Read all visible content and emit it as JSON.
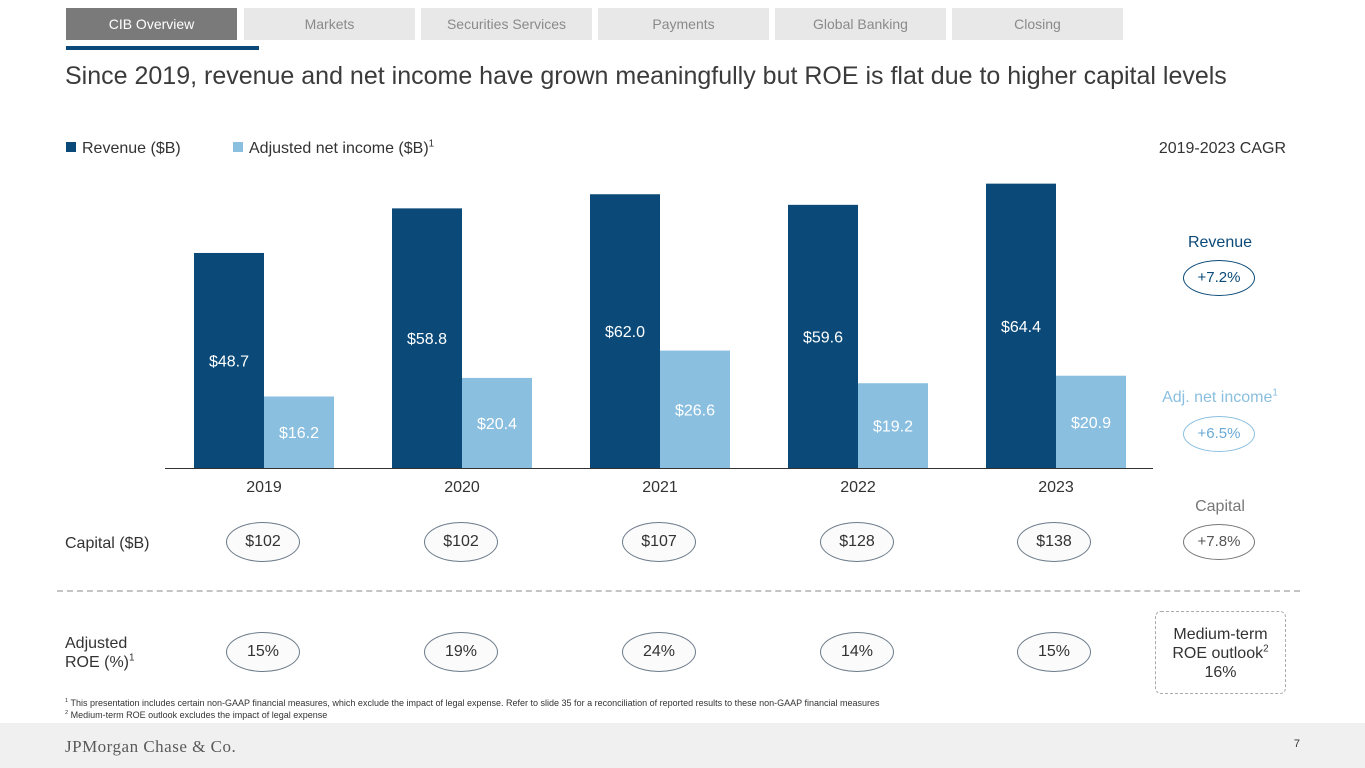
{
  "tabs": [
    {
      "label": "CIB Overview",
      "active": true
    },
    {
      "label": "Markets",
      "active": false
    },
    {
      "label": "Securities Services",
      "active": false
    },
    {
      "label": "Payments",
      "active": false
    },
    {
      "label": "Global Banking",
      "active": false
    },
    {
      "label": "Closing",
      "active": false
    }
  ],
  "title": "Since 2019, revenue and net income have grown meaningfully but ROE is flat due to higher capital levels",
  "legend": {
    "revenue": "Revenue ($B)",
    "net_income": "Adjusted net income ($B)",
    "net_income_sup": "1"
  },
  "cagr": {
    "title": "2019-2023 CAGR",
    "revenue_label": "Revenue",
    "revenue_value": "+7.2%",
    "net_income_label": "Adj. net income",
    "net_income_sup": "1",
    "net_income_value": "+6.5%",
    "capital_label": "Capital",
    "capital_value": "+7.8%"
  },
  "capital": {
    "label": "Capital ($B)",
    "values": [
      "$102",
      "$102",
      "$107",
      "$128",
      "$138"
    ]
  },
  "roe": {
    "label_line1": "Adjusted",
    "label_line2": "ROE (%)",
    "label_sup": "1",
    "values": [
      "15%",
      "19%",
      "24%",
      "14%",
      "15%"
    ]
  },
  "outlook": {
    "line1": "Medium-term",
    "line2": "ROE outlook",
    "sup": "2",
    "value": "16%"
  },
  "footnotes": {
    "fn1_mark": "1",
    "fn1": "This presentation includes certain non-GAAP financial measures, which exclude the impact of legal expense. Refer to slide 35 for a reconciliation of reported results to these non-GAAP financial measures",
    "fn2_mark": "2",
    "fn2": "Medium-term ROE outlook excludes the impact of legal expense"
  },
  "footer": {
    "logo": "JPMorgan Chase & Co.",
    "page": "7"
  },
  "colors": {
    "revenue": "#0b4a78",
    "net_income": "#8abfe0",
    "axis": "#333333"
  },
  "chart_data": {
    "type": "bar",
    "categories": [
      "2019",
      "2020",
      "2021",
      "2022",
      "2023"
    ],
    "series": [
      {
        "name": "Revenue ($B)",
        "values": [
          48.7,
          58.8,
          62.0,
          59.6,
          64.4
        ],
        "labels": [
          "$48.7",
          "$58.8",
          "$62.0",
          "$59.6",
          "$64.4"
        ]
      },
      {
        "name": "Adjusted net income ($B)",
        "values": [
          16.2,
          20.4,
          26.6,
          19.2,
          20.9
        ],
        "labels": [
          "$16.2",
          "$20.4",
          "$26.6",
          "$19.2",
          "$20.9"
        ]
      }
    ],
    "ylim": [
      0,
      65
    ],
    "xlabel": "",
    "ylabel": "",
    "legend": "top-left"
  }
}
